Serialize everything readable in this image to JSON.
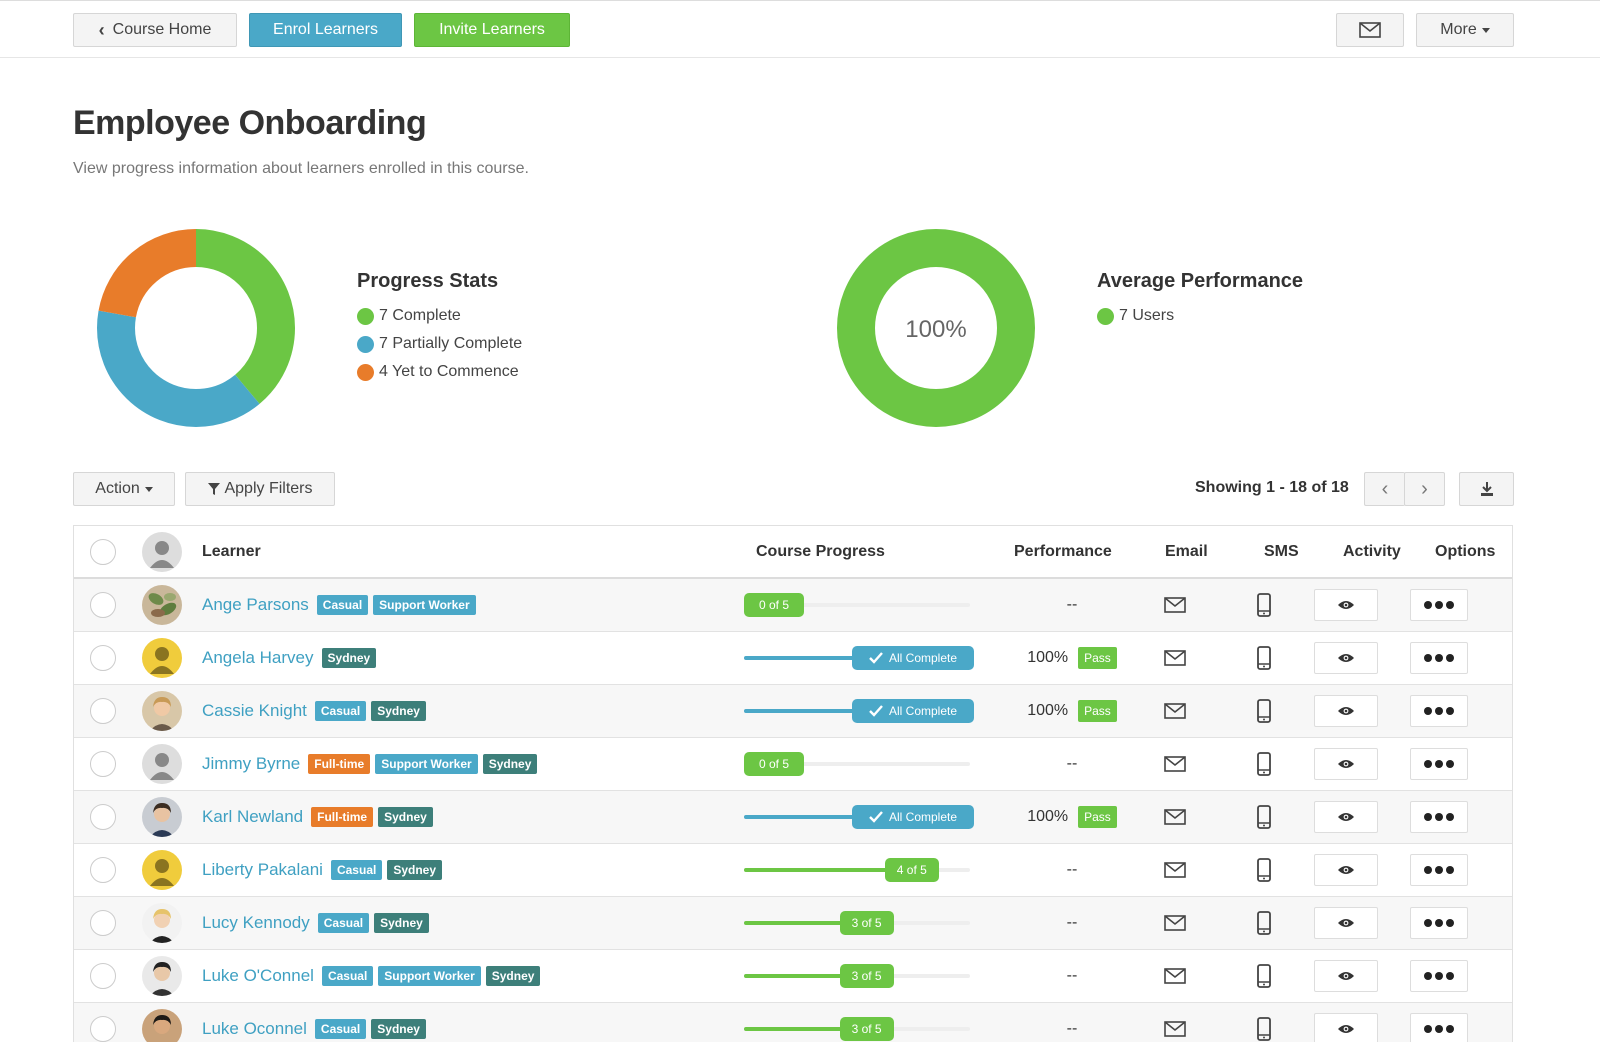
{
  "toolbar": {
    "course_home": "Course Home",
    "enrol": "Enrol Learners",
    "invite": "Invite Learners",
    "more": "More"
  },
  "page": {
    "title": "Employee Onboarding",
    "subtitle": "View progress information about learners enrolled in this course."
  },
  "progress_stats": {
    "title": "Progress Stats",
    "items": [
      {
        "label": "7 Complete",
        "color": "#6cc644",
        "value": 7
      },
      {
        "label": "7 Partially Complete",
        "color": "#4aa8c8",
        "value": 7
      },
      {
        "label": "4 Yet to Commence",
        "color": "#e87c2a",
        "value": 4
      }
    ]
  },
  "average_performance": {
    "title": "Average Performance",
    "center_label": "100%",
    "items": [
      {
        "label": "7 Users",
        "color": "#6cc644"
      }
    ]
  },
  "list_toolbar": {
    "action": "Action",
    "filters": "Apply Filters",
    "showing": "Showing 1 - 18 of 18"
  },
  "table": {
    "headers": {
      "learner": "Learner",
      "progress": "Course Progress",
      "performance": "Performance",
      "email": "Email",
      "sms": "SMS",
      "activity": "Activity",
      "options": "Options"
    },
    "rows": [
      {
        "name": "Ange Parsons",
        "tags": [
          "Casual",
          "Support Worker"
        ],
        "progress_label": "0 of 5",
        "progress_fraction": 0.0,
        "complete": false,
        "performance": "--",
        "pass": "",
        "avatar": "plant"
      },
      {
        "name": "Angela Harvey",
        "tags": [
          "Sydney"
        ],
        "progress_label": "All Complete",
        "progress_fraction": 1.0,
        "complete": true,
        "performance": "100%",
        "pass": "Pass",
        "avatar": "yellow"
      },
      {
        "name": "Cassie Knight",
        "tags": [
          "Casual",
          "Sydney"
        ],
        "progress_label": "All Complete",
        "progress_fraction": 1.0,
        "complete": true,
        "performance": "100%",
        "pass": "Pass",
        "avatar": "photo-f"
      },
      {
        "name": "Jimmy Byrne",
        "tags": [
          "Full-time",
          "Support Worker",
          "Sydney"
        ],
        "progress_label": "0 of 5",
        "progress_fraction": 0.0,
        "complete": false,
        "performance": "--",
        "pass": "",
        "avatar": "grey"
      },
      {
        "name": "Karl Newland",
        "tags": [
          "Full-time",
          "Sydney"
        ],
        "progress_label": "All Complete",
        "progress_fraction": 1.0,
        "complete": true,
        "performance": "100%",
        "pass": "Pass",
        "avatar": "photo-m"
      },
      {
        "name": "Liberty Pakalani",
        "tags": [
          "Casual",
          "Sydney"
        ],
        "progress_label": "4 of 5",
        "progress_fraction": 0.8,
        "complete": false,
        "performance": "--",
        "pass": "",
        "avatar": "yellow"
      },
      {
        "name": "Lucy Kennody",
        "tags": [
          "Casual",
          "Sydney"
        ],
        "progress_label": "3 of 5",
        "progress_fraction": 0.6,
        "complete": false,
        "performance": "--",
        "pass": "",
        "avatar": "photo-f2"
      },
      {
        "name": "Luke O'Connel",
        "tags": [
          "Casual",
          "Support Worker",
          "Sydney"
        ],
        "progress_label": "3 of 5",
        "progress_fraction": 0.6,
        "complete": false,
        "performance": "--",
        "pass": "",
        "avatar": "photo-m2"
      },
      {
        "name": "Luke Oconnel",
        "tags": [
          "Casual",
          "Sydney"
        ],
        "progress_label": "3 of 5",
        "progress_fraction": 0.6,
        "complete": false,
        "performance": "--",
        "pass": "",
        "avatar": "photo-m3"
      }
    ]
  }
}
